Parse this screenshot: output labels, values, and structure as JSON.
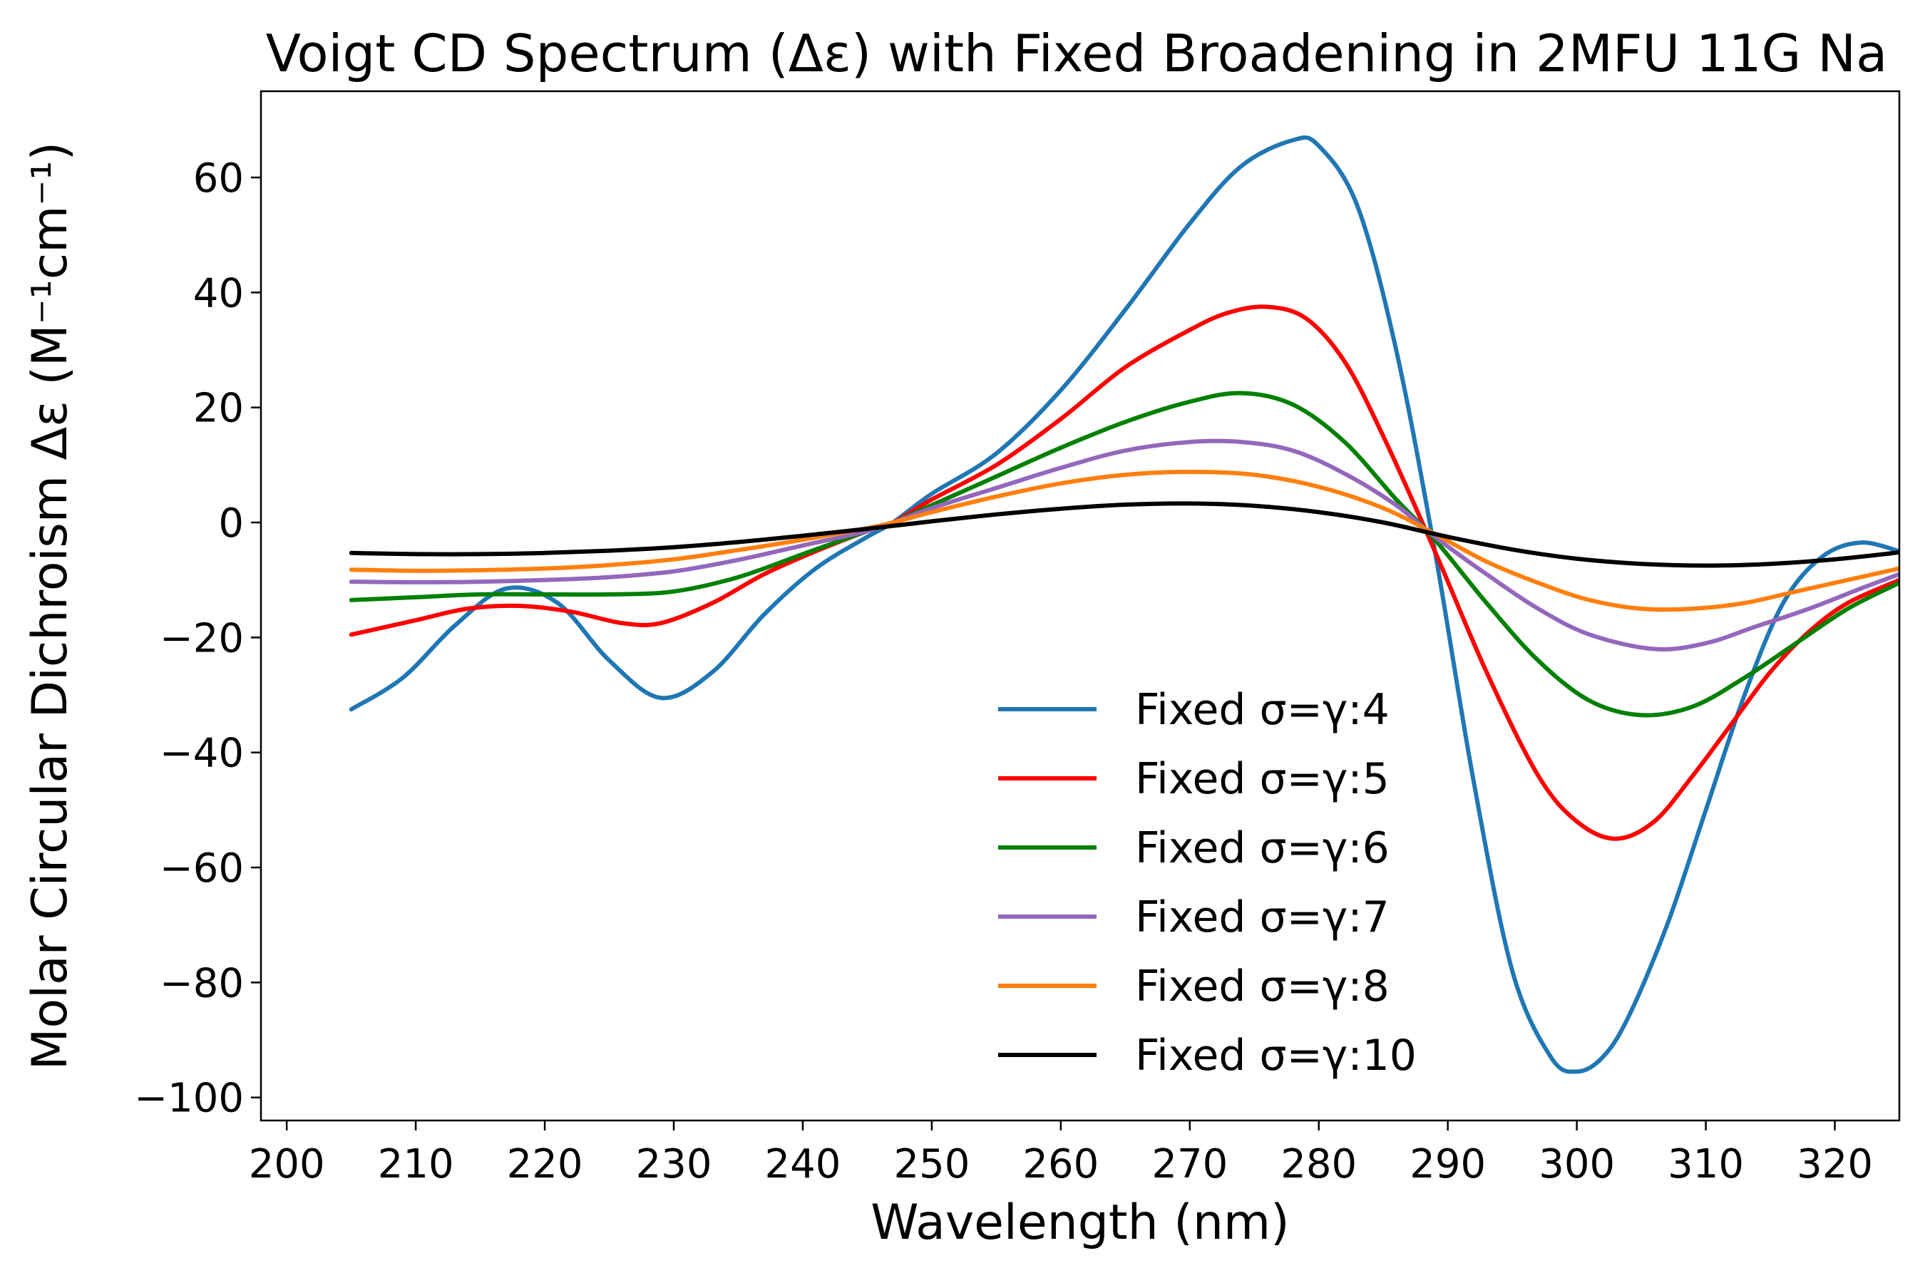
{
  "chart_data": {
    "type": "line",
    "title": "Voigt CD Spectrum (Δε) with Fixed Broadening in 2MFU 11G Na",
    "xlabel": "Wavelength (nm)",
    "ylabel": "Molar Circular Dichroism Δε (M⁻¹cm⁻¹)",
    "xlim": [
      198,
      325
    ],
    "ylim": [
      -104,
      75
    ],
    "xticks": [
      200,
      210,
      220,
      230,
      240,
      250,
      260,
      270,
      280,
      290,
      300,
      310,
      320
    ],
    "yticks": [
      -100,
      -80,
      -60,
      -40,
      -20,
      0,
      20,
      40,
      60
    ],
    "xtick_labels": [
      "200",
      "210",
      "220",
      "230",
      "240",
      "250",
      "260",
      "270",
      "280",
      "290",
      "300",
      "310",
      "320"
    ],
    "ytick_labels": [
      "−100",
      "−80",
      "−60",
      "−40",
      "−20",
      "0",
      "20",
      "40",
      "60"
    ],
    "grid": false,
    "legend_position": "lower-center",
    "series": [
      {
        "name": "Fixed σ=γ:4",
        "color": "#1f77b4",
        "x": [
          205,
          209,
          213,
          217,
          221,
          225,
          229,
          233,
          237,
          241,
          245,
          247,
          250,
          255,
          260,
          265,
          270,
          274,
          278,
          280,
          283,
          286,
          289,
          292,
          295,
          298,
          300,
          302,
          304,
          307,
          310,
          313,
          316,
          319,
          322,
          325
        ],
        "y": [
          -32.5,
          -27,
          -18,
          -11.5,
          -14,
          -24,
          -30.5,
          -26,
          -16,
          -8,
          -2.5,
          0,
          5,
          12,
          23,
          37,
          52,
          62,
          66.5,
          65.5,
          55,
          30,
          -5,
          -45,
          -78,
          -93,
          -95.5,
          -93,
          -86,
          -70,
          -50,
          -30,
          -14,
          -6,
          -3.5,
          -5
        ]
      },
      {
        "name": "Fixed σ=γ:5",
        "color": "#ff0000",
        "x": [
          205,
          210,
          214,
          218,
          222,
          226,
          229,
          233,
          237,
          241,
          245,
          247,
          250,
          255,
          260,
          265,
          270,
          273,
          276,
          279,
          282,
          285,
          289,
          293,
          297,
          300,
          303,
          306,
          309,
          312,
          315,
          318,
          321,
          325
        ],
        "y": [
          -19.5,
          -17,
          -15,
          -14.5,
          -15.5,
          -17.5,
          -17.5,
          -14,
          -9,
          -5,
          -1.5,
          0,
          4,
          10,
          18,
          27,
          33.5,
          36.5,
          37.5,
          35.5,
          28,
          15,
          -5,
          -26,
          -44,
          -52,
          -55,
          -52,
          -44,
          -35,
          -26,
          -19,
          -14,
          -10
        ]
      },
      {
        "name": "Fixed σ=γ:6",
        "color": "#008000",
        "x": [
          205,
          210,
          215,
          220,
          225,
          230,
          235,
          240,
          245,
          247,
          250,
          255,
          260,
          265,
          270,
          274,
          278,
          282,
          286,
          289,
          293,
          297,
          301,
          305,
          309,
          313,
          317,
          321,
          325
        ],
        "y": [
          -13.5,
          -13,
          -12.5,
          -12.5,
          -12.5,
          -12,
          -9.5,
          -5.5,
          -1.5,
          0,
          3,
          8,
          13,
          17.5,
          21,
          22.5,
          20.5,
          14,
          4,
          -3,
          -14,
          -24,
          -31,
          -33.5,
          -32,
          -27,
          -21,
          -15,
          -10.5
        ]
      },
      {
        "name": "Fixed σ=γ:7",
        "color": "#9467bd",
        "x": [
          205,
          210,
          215,
          220,
          225,
          230,
          235,
          240,
          245,
          247,
          250,
          255,
          260,
          265,
          270,
          274,
          278,
          282,
          286,
          289,
          293,
          297,
          301,
          306,
          310,
          314,
          318,
          322,
          325
        ],
        "y": [
          -10.3,
          -10.4,
          -10.3,
          -10,
          -9.5,
          -8.5,
          -6.5,
          -4,
          -1.5,
          0,
          2.5,
          6,
          9.5,
          12.5,
          14,
          14,
          12.5,
          8.5,
          3,
          -2.5,
          -9,
          -15,
          -19.5,
          -22,
          -21,
          -18,
          -15,
          -11.5,
          -9
        ]
      },
      {
        "name": "Fixed σ=γ:8",
        "color": "#ff7f0e",
        "x": [
          205,
          210,
          215,
          220,
          225,
          230,
          235,
          240,
          245,
          247,
          250,
          255,
          260,
          265,
          270,
          275,
          280,
          285,
          289,
          293,
          297,
          301,
          305,
          309,
          313,
          317,
          321,
          325
        ],
        "y": [
          -8.2,
          -8.4,
          -8.3,
          -8,
          -7.4,
          -6.4,
          -4.8,
          -3,
          -1,
          0,
          1.8,
          4.5,
          6.8,
          8.3,
          8.8,
          8.3,
          6.2,
          2.5,
          -2,
          -6.8,
          -10.5,
          -13.5,
          -15,
          -15,
          -14,
          -12,
          -10,
          -8
        ]
      },
      {
        "name": "Fixed σ=γ:10",
        "color": "#000000",
        "x": [
          205,
          210,
          215,
          220,
          225,
          230,
          235,
          240,
          245,
          250,
          255,
          260,
          265,
          270,
          275,
          280,
          285,
          290,
          295,
          300,
          305,
          310,
          315,
          320,
          325
        ],
        "y": [
          -5.3,
          -5.5,
          -5.5,
          -5.3,
          -4.9,
          -4.3,
          -3.4,
          -2.3,
          -1.1,
          0.2,
          1.4,
          2.4,
          3.1,
          3.3,
          2.9,
          1.8,
          0,
          -2.5,
          -4.7,
          -6.3,
          -7.2,
          -7.5,
          -7.2,
          -6.4,
          -5.2
        ]
      }
    ]
  }
}
